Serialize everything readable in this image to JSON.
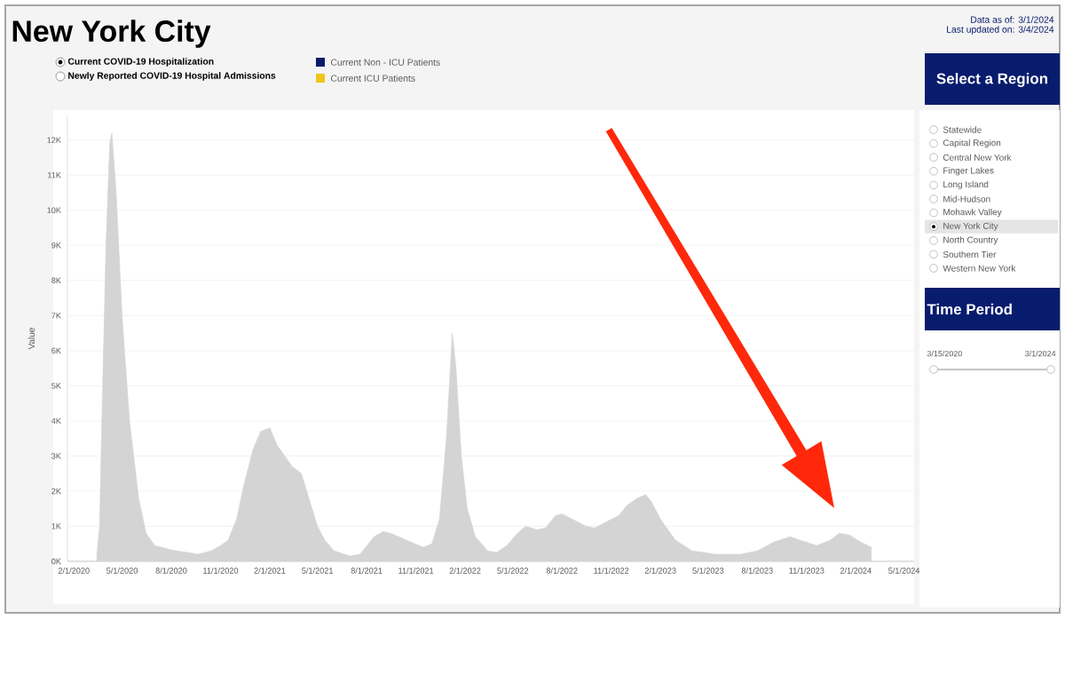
{
  "chart_data": {
    "type": "area",
    "title": "New York City",
    "ylabel": "Value",
    "x": [
      "2020-03-15",
      "2020-03-20",
      "2020-03-25",
      "2020-04-01",
      "2020-04-08",
      "2020-04-12",
      "2020-04-20",
      "2020-05-01",
      "2020-05-15",
      "2020-06-01",
      "2020-06-15",
      "2020-07-01",
      "2020-07-15",
      "2020-08-01",
      "2020-09-01",
      "2020-09-20",
      "2020-10-15",
      "2020-11-01",
      "2020-11-15",
      "2020-12-01",
      "2020-12-15",
      "2021-01-01",
      "2021-01-15",
      "2021-02-01",
      "2021-02-15",
      "2021-03-01",
      "2021-03-15",
      "2021-04-01",
      "2021-04-15",
      "2021-05-01",
      "2021-05-15",
      "2021-06-01",
      "2021-07-01",
      "2021-07-20",
      "2021-08-15",
      "2021-09-01",
      "2021-09-15",
      "2021-10-15",
      "2021-11-15",
      "2021-12-01",
      "2021-12-15",
      "2021-12-28",
      "2022-01-08",
      "2022-01-15",
      "2022-01-25",
      "2022-02-05",
      "2022-02-20",
      "2022-03-15",
      "2022-04-01",
      "2022-04-20",
      "2022-05-10",
      "2022-05-25",
      "2022-06-15",
      "2022-07-01",
      "2022-07-20",
      "2022-08-01",
      "2022-08-20",
      "2022-09-15",
      "2022-10-01",
      "2022-10-20",
      "2022-11-15",
      "2022-12-01",
      "2022-12-20",
      "2023-01-05",
      "2023-01-15",
      "2023-02-01",
      "2023-03-01",
      "2023-04-01",
      "2023-05-15",
      "2023-07-01",
      "2023-08-01",
      "2023-09-01",
      "2023-10-01",
      "2023-10-20",
      "2023-11-20",
      "2023-12-15",
      "2024-01-01",
      "2024-01-20",
      "2024-02-10",
      "2024-03-01"
    ],
    "values": [
      200,
      1000,
      4500,
      9000,
      11900,
      12200,
      10500,
      7000,
      4000,
      1800,
      800,
      450,
      400,
      320,
      250,
      200,
      300,
      450,
      600,
      1200,
      2200,
      3200,
      3700,
      3800,
      3300,
      3000,
      2700,
      2500,
      1800,
      1000,
      600,
      300,
      150,
      200,
      700,
      850,
      800,
      600,
      400,
      500,
      1200,
      3500,
      6500,
      5500,
      3000,
      1500,
      700,
      300,
      250,
      450,
      800,
      1000,
      900,
      950,
      1300,
      1350,
      1200,
      1000,
      950,
      1100,
      1300,
      1600,
      1800,
      1900,
      1700,
      1200,
      600,
      300,
      200,
      200,
      300,
      550,
      700,
      600,
      450,
      600,
      800,
      750,
      550,
      400
    ],
    "color": "#d4d4d4",
    "xlim": [
      "2020-01-20",
      "2024-05-20"
    ],
    "xticks": [
      {
        "value": "2020-02-01",
        "label": "2/1/2020"
      },
      {
        "value": "2020-05-01",
        "label": "5/1/2020"
      },
      {
        "value": "2020-08-01",
        "label": "8/1/2020"
      },
      {
        "value": "2020-11-01",
        "label": "11/1/2020"
      },
      {
        "value": "2021-02-01",
        "label": "2/1/2021"
      },
      {
        "value": "2021-05-01",
        "label": "5/1/2021"
      },
      {
        "value": "2021-08-01",
        "label": "8/1/2021"
      },
      {
        "value": "2021-11-01",
        "label": "11/1/2021"
      },
      {
        "value": "2022-02-01",
        "label": "2/1/2022"
      },
      {
        "value": "2022-05-01",
        "label": "5/1/2022"
      },
      {
        "value": "2022-08-01",
        "label": "8/1/2022"
      },
      {
        "value": "2022-11-01",
        "label": "11/1/2022"
      },
      {
        "value": "2023-02-01",
        "label": "2/1/2023"
      },
      {
        "value": "2023-05-01",
        "label": "5/1/2023"
      },
      {
        "value": "2023-08-01",
        "label": "8/1/2023"
      },
      {
        "value": "2023-11-01",
        "label": "11/1/2023"
      },
      {
        "value": "2024-02-01",
        "label": "2/1/2024"
      },
      {
        "value": "2024-05-01",
        "label": "5/1/2024"
      }
    ],
    "ylim": [
      0,
      12700
    ],
    "yticks": [
      {
        "value": 0,
        "label": "0K"
      },
      {
        "value": 1000,
        "label": "1K"
      },
      {
        "value": 2000,
        "label": "2K"
      },
      {
        "value": 3000,
        "label": "3K"
      },
      {
        "value": 4000,
        "label": "4K"
      },
      {
        "value": 5000,
        "label": "5K"
      },
      {
        "value": 6000,
        "label": "6K"
      },
      {
        "value": 7000,
        "label": "7K"
      },
      {
        "value": 8000,
        "label": "8K"
      },
      {
        "value": 9000,
        "label": "9K"
      },
      {
        "value": 10000,
        "label": "10K"
      },
      {
        "value": 11000,
        "label": "11K"
      },
      {
        "value": 12000,
        "label": "12K"
      }
    ],
    "grid": "y",
    "annotations": [
      "Data as of: 3/1/2024",
      "Last updated on: 3/4/2024",
      "Current COVID-19 Hospitalization",
      "Newly Reported COVID-19 Hospital Admissions",
      "Current Non - ICU Patients",
      "Current ICU Patients",
      "Select a Region",
      "Statewide",
      "Capital Region",
      "Central New York",
      "Finger Lakes",
      "Long Island",
      "Mid-Hudson",
      "Mohawk Valley",
      "New York City",
      "North Country",
      "Southern Tier",
      "Western New York",
      "Time Period",
      "3/15/2020",
      "3/1/2024"
    ]
  }
}
